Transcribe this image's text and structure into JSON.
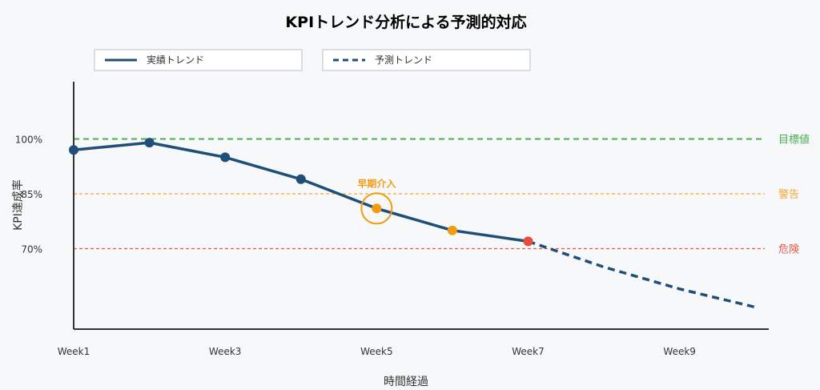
{
  "chart_data": {
    "type": "line",
    "title": "KPIトレンド分析による予測的対応",
    "xlabel": "時間経過",
    "ylabel": "KPI達成率",
    "x_ticks": [
      "Week1",
      "Week3",
      "Week5",
      "Week7",
      "Week9"
    ],
    "y_ticks": [
      "70%",
      "85%",
      "100%"
    ],
    "xlim": [
      1,
      10.6
    ],
    "ylim": [
      48,
      138
    ],
    "series": [
      {
        "name": "実績トレンド",
        "style": "solid",
        "color": "#1f4e79",
        "x": [
          1,
          2,
          3,
          4,
          5,
          6,
          7
        ],
        "y": [
          97,
          99,
          95,
          89,
          81,
          75,
          72
        ],
        "point_colors": [
          "#1f4e79",
          "#1f4e79",
          "#1f4e79",
          "#1f4e79",
          "#f39c12",
          "#f39c12",
          "#e74c3c"
        ]
      },
      {
        "name": "予測トレンド",
        "style": "dashed",
        "color": "#1f4e79",
        "x": [
          7,
          8,
          9,
          10
        ],
        "y": [
          72,
          65,
          59,
          54
        ]
      }
    ],
    "reference_lines": [
      {
        "label": "目標値",
        "y": 100,
        "color": "#4cae4f",
        "dash": "long"
      },
      {
        "label": "警告",
        "y": 85,
        "color": "#f4a83a",
        "dash": "short"
      },
      {
        "label": "危険",
        "y": 70,
        "color": "#e8584d",
        "dash": "short"
      }
    ],
    "annotations": [
      {
        "text": "早期介入",
        "x": 5,
        "y": 81,
        "color": "#f39c12"
      }
    ],
    "legend_position": "top-left",
    "grid": false
  },
  "colors": {
    "title": "#1f4e79",
    "axis": "#333333",
    "background": "#f7f8fa"
  }
}
